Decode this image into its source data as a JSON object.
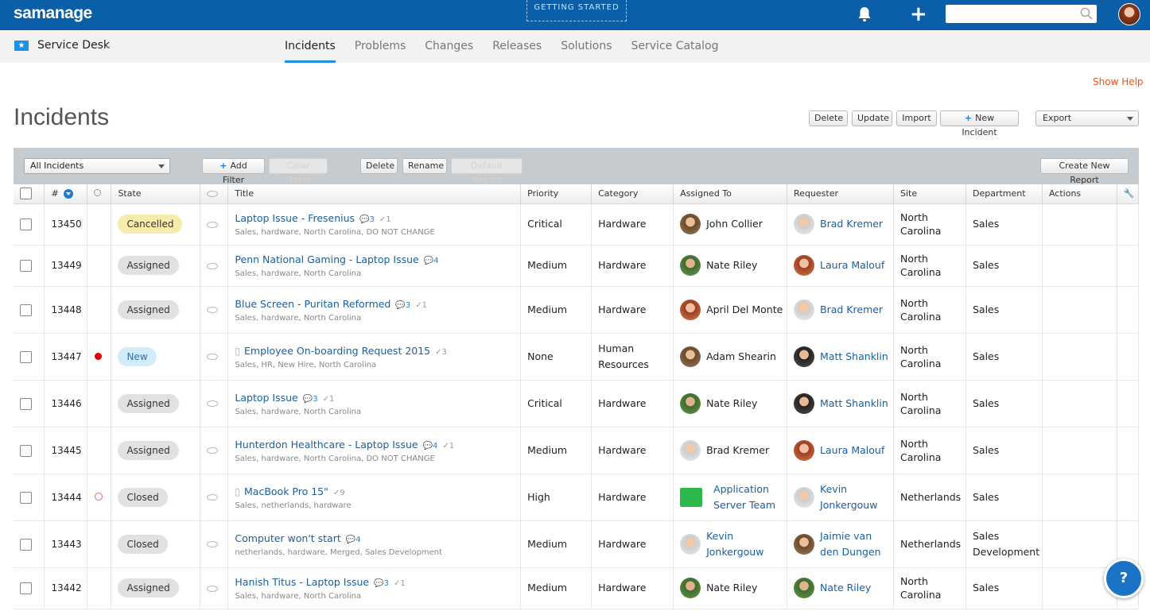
{
  "app": {
    "brand": "samanage",
    "getting_started": "GETTING STARTED"
  },
  "nav": {
    "module": "Service Desk",
    "tabs": [
      "Incidents",
      "Problems",
      "Changes",
      "Releases",
      "Solutions",
      "Service Catalog"
    ],
    "active_tab": "Incidents"
  },
  "page": {
    "title": "Incidents",
    "show_help": "Show Help"
  },
  "toolbar": {
    "delete": "Delete",
    "update": "Update",
    "import": "Import",
    "new_incident": "New Incident",
    "export": "Export"
  },
  "filters": {
    "view": "All Incidents",
    "add_filter": "Add Filter",
    "clear_filters": "Clear Filters",
    "delete": "Delete",
    "rename": "Rename",
    "default_report": "Default Report",
    "create_report": "Create New Report"
  },
  "columns": {
    "number": "#",
    "state": "State",
    "title": "Title",
    "priority": "Priority",
    "category": "Category",
    "assigned_to": "Assigned To",
    "requester": "Requester",
    "site": "Site",
    "department": "Department",
    "actions": "Actions"
  },
  "rows": [
    {
      "id": "13450",
      "dot": "",
      "state": "Cancelled",
      "state_style": "cancelled",
      "title": "Laptop Issue - Fresenius",
      "doc": false,
      "comments": "3",
      "checks": "1",
      "tags": "Sales, hardware, North Carolina, DO NOT CHANGE",
      "priority": "Critical",
      "critical": true,
      "category": "Hardware",
      "assigned": "John Collier",
      "assigned_av": "brn",
      "assigned_link": false,
      "requester": "Brad Kremer",
      "req_av": "wht",
      "site": "North Carolina",
      "department": "Sales"
    },
    {
      "id": "13449",
      "dot": "",
      "state": "Assigned",
      "state_style": "",
      "title": "Penn National Gaming - Laptop Issue",
      "doc": false,
      "comments": "4",
      "checks": "",
      "tags": "Sales, hardware, North Carolina",
      "priority": "Medium",
      "critical": false,
      "category": "Hardware",
      "assigned": "Nate Riley",
      "assigned_av": "grn",
      "assigned_link": false,
      "requester": "Laura Malouf",
      "req_av": "red",
      "site": "North Carolina",
      "department": "Sales"
    },
    {
      "id": "13448",
      "dot": "",
      "state": "Assigned",
      "state_style": "",
      "title": "Blue Screen - Puritan Reformed",
      "doc": false,
      "comments": "3",
      "checks": "1",
      "tags": "Sales, hardware, North Carolina",
      "priority": "Medium",
      "critical": false,
      "category": "Hardware",
      "assigned": "April Del Monte",
      "assigned_av": "red",
      "assigned_link": false,
      "requester": "Brad Kremer",
      "req_av": "wht",
      "site": "North Carolina",
      "department": "Sales"
    },
    {
      "id": "13447",
      "dot": "red",
      "state": "New",
      "state_style": "new",
      "title": "Employee On-boarding Request 2015",
      "doc": true,
      "comments": "",
      "checks": "3",
      "tags": "Sales, HR, New Hire, North Carolina",
      "priority": "None",
      "critical": false,
      "category": "Human Resources",
      "assigned": "Adam Shearin",
      "assigned_av": "brn",
      "assigned_link": false,
      "requester": "Matt Shanklin",
      "req_av": "dk",
      "site": "North Carolina",
      "department": "Sales"
    },
    {
      "id": "13446",
      "dot": "",
      "state": "Assigned",
      "state_style": "",
      "title": "Laptop Issue",
      "doc": false,
      "comments": "3",
      "checks": "1",
      "tags": "Sales, hardware, North Carolina",
      "priority": "Critical",
      "critical": true,
      "category": "Hardware",
      "assigned": "Nate Riley",
      "assigned_av": "grn",
      "assigned_link": false,
      "requester": "Matt Shanklin",
      "req_av": "dk",
      "site": "North Carolina",
      "department": "Sales"
    },
    {
      "id": "13445",
      "dot": "",
      "state": "Assigned",
      "state_style": "",
      "title": "Hunterdon Healthcare - Laptop Issue",
      "doc": false,
      "comments": "4",
      "checks": "1",
      "tags": "Sales, hardware, North Carolina, DO NOT CHANGE",
      "priority": "Medium",
      "critical": false,
      "category": "Hardware",
      "assigned": "Brad Kremer",
      "assigned_av": "wht",
      "assigned_link": false,
      "requester": "Laura Malouf",
      "req_av": "red",
      "site": "North Carolina",
      "department": "Sales"
    },
    {
      "id": "13444",
      "dot": "ring",
      "state": "Closed",
      "state_style": "",
      "title": "MacBook Pro 15\"",
      "doc": true,
      "comments": "",
      "checks": "9",
      "tags": "Sales, netherlands, hardware",
      "priority": "High",
      "critical": false,
      "category": "Hardware",
      "assigned": "Application Server Team",
      "assigned_av": "team",
      "assigned_link": true,
      "requester": "Kevin Jonkergouw",
      "req_av": "wht",
      "site": "Netherlands",
      "department": "Sales"
    },
    {
      "id": "13443",
      "dot": "",
      "state": "Closed",
      "state_style": "",
      "title": "Computer won't start",
      "doc": false,
      "comments": "4",
      "checks": "",
      "tags": "netherlands, hardware, Merged, Sales Development",
      "priority": "Medium",
      "critical": false,
      "category": "Hardware",
      "assigned": "Kevin Jonkergouw",
      "assigned_av": "wht",
      "assigned_link": true,
      "requester": "Jaimie van den Dungen",
      "req_av": "brn",
      "site": "Netherlands",
      "department": "Sales Development"
    },
    {
      "id": "13442",
      "dot": "",
      "state": "Assigned",
      "state_style": "",
      "title": "Hanish Titus - Laptop Issue",
      "doc": false,
      "comments": "3",
      "checks": "1",
      "tags": "Sales, hardware, North Carolina",
      "priority": "Medium",
      "critical": false,
      "category": "Hardware",
      "assigned": "Nate Riley",
      "assigned_av": "grn",
      "assigned_link": false,
      "requester": "Nate Riley",
      "req_av": "grn",
      "site": "North Carolina",
      "department": "Sales"
    }
  ],
  "help_fab": "?"
}
